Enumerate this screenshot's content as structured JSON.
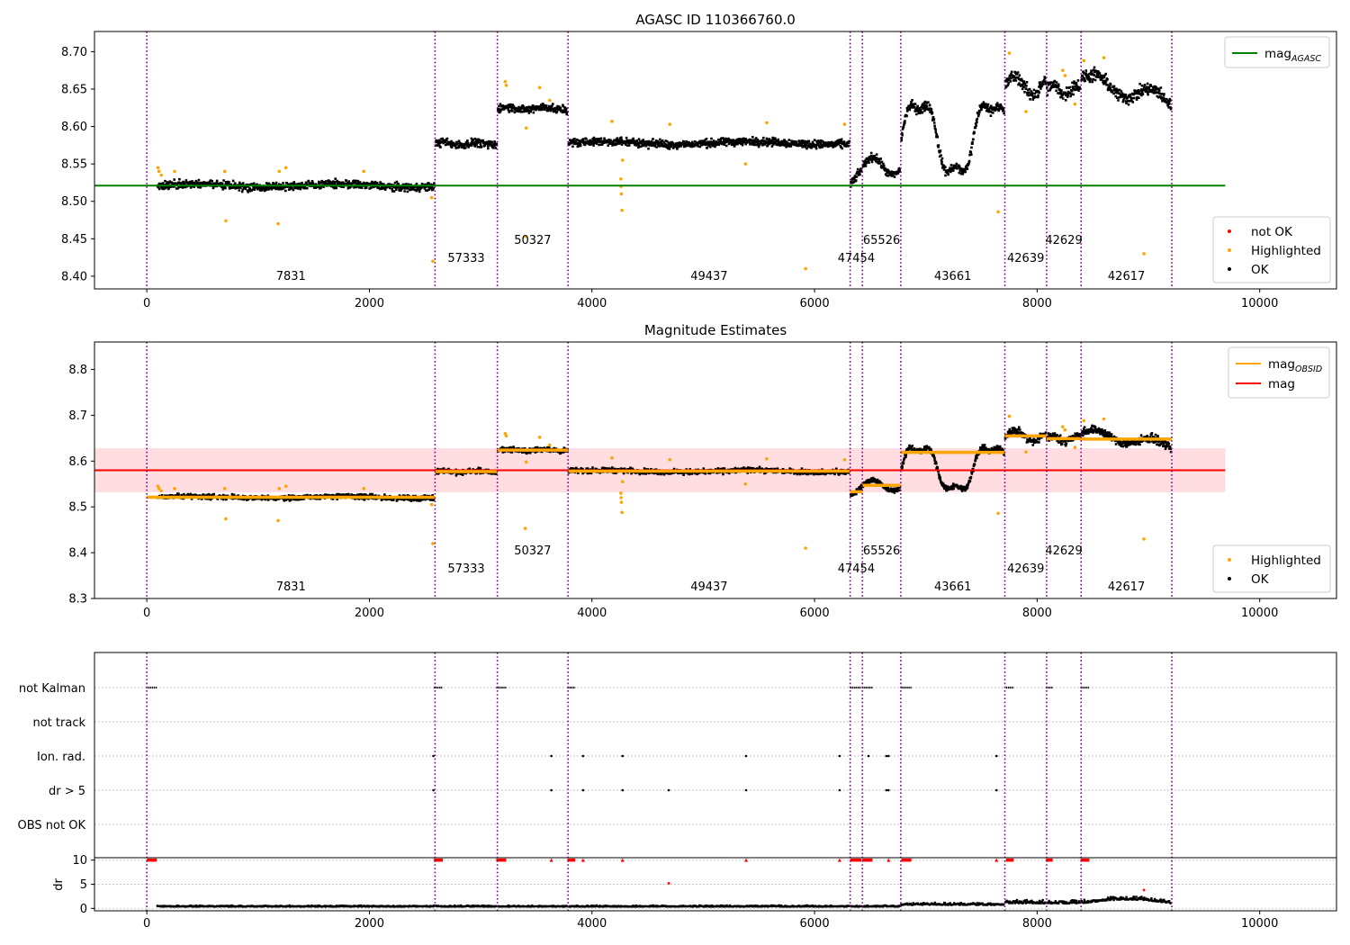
{
  "figure_title": "AGASC ID 110366760.0",
  "colors": {
    "ok": "#000000",
    "highlighted": "#ffa500",
    "not_ok": "#ff0000",
    "agasc_line": "#008000",
    "mag_line": "#ff0000",
    "obsid_line": "#ffa500",
    "band": "#ffdde1",
    "obs_boundary": "#800080",
    "grid": "#b0b0b0"
  },
  "chart_data": [
    {
      "type": "scatter",
      "title": "AGASC ID 110366760.0",
      "xlim": [
        -470,
        10690
      ],
      "ylim": [
        8.383,
        8.727
      ],
      "xticks": [
        0,
        2000,
        4000,
        6000,
        8000,
        10000
      ],
      "yticks": [
        8.4,
        8.45,
        8.5,
        8.55,
        8.6,
        8.65,
        8.7
      ],
      "ytick_labels": [
        "8.40",
        "8.45",
        "8.50",
        "8.55",
        "8.60",
        "8.65",
        "8.70"
      ],
      "legend_top": {
        "placement": "top-right",
        "entries": [
          {
            "label_main": "mag",
            "label_sub": "AGASC",
            "marker": "line",
            "color": "#008000"
          }
        ]
      },
      "legend_bottom": {
        "placement": "bottom-right",
        "entries": [
          {
            "label": "not OK",
            "color": "#ff0000"
          },
          {
            "label": "Highlighted",
            "color": "#ffa500"
          },
          {
            "label": "OK",
            "color": "#000000"
          }
        ]
      },
      "mag_agasc": 8.521,
      "mag_agasc_x": [
        -470,
        9690
      ]
    },
    {
      "type": "scatter",
      "title": "Magnitude Estimates",
      "xlim": [
        -470,
        10690
      ],
      "ylim": [
        8.3,
        8.86
      ],
      "xticks": [
        0,
        2000,
        4000,
        6000,
        8000,
        10000
      ],
      "yticks": [
        8.3,
        8.4,
        8.5,
        8.6,
        8.7,
        8.8
      ],
      "ytick_labels": [
        "8.3",
        "8.4",
        "8.5",
        "8.6",
        "8.7",
        "8.8"
      ],
      "legend_top": {
        "placement": "top-right",
        "entries": [
          {
            "label_main": "mag",
            "label_sub": "OBSID",
            "marker": "line",
            "color": "#ffa500"
          },
          {
            "label_main": "mag",
            "label_sub": "",
            "marker": "line",
            "color": "#ff0000"
          }
        ]
      },
      "legend_bottom": {
        "placement": "bottom-right",
        "entries": [
          {
            "label": "Highlighted",
            "color": "#ffa500"
          },
          {
            "label": "OK",
            "color": "#000000"
          }
        ]
      },
      "mag": 8.58,
      "mag_band": [
        8.532,
        8.628
      ],
      "mag_x": [
        -470,
        9690
      ]
    },
    {
      "type": "scatter",
      "title": "",
      "xlim": [
        -470,
        10690
      ],
      "flag_labels": [
        "not Kalman",
        "not track",
        "Ion. rad.",
        "dr > 5",
        "OBS not OK"
      ],
      "xticks": [
        0,
        2000,
        4000,
        6000,
        8000,
        10000
      ],
      "dr_ylabel": "dr",
      "dr_ylim": [
        -0.5,
        10.5
      ],
      "dr_yticks": [
        0,
        5,
        10
      ],
      "flags": {
        "not Kalman": [
          [
            0,
            90
          ],
          [
            2580,
            2660
          ],
          [
            3140,
            3230
          ],
          [
            3780,
            3850
          ],
          [
            6320,
            6420
          ],
          [
            6430,
            6520
          ],
          [
            6780,
            6870
          ],
          [
            7720,
            7790
          ],
          [
            8080,
            8140
          ],
          [
            8390,
            8470
          ]
        ],
        "Ion. rad.": [
          2575,
          3635,
          3920,
          4275,
          5385,
          6225,
          6485,
          6645,
          6665,
          7635
        ],
        "dr > 5": [
          2575,
          3635,
          3920,
          4275,
          4690,
          5385,
          6225,
          6645,
          6665,
          7635
        ]
      },
      "dr_red_at_10": [
        [
          0,
          90
        ],
        [
          2580,
          2660
        ],
        [
          3140,
          3230
        ],
        [
          3780,
          3850
        ],
        [
          6320,
          6420
        ],
        [
          6430,
          6520
        ],
        [
          6780,
          6870
        ],
        [
          7720,
          7790
        ],
        [
          8080,
          8140
        ],
        [
          8390,
          8470
        ]
      ],
      "dr_red_single": [
        3635,
        3920,
        4275,
        5385,
        6225,
        6665,
        7635
      ],
      "dr_red_other": [
        {
          "x": 4690,
          "y": 5.2
        },
        {
          "x": 8960,
          "y": 3.8
        }
      ]
    }
  ],
  "observations": [
    {
      "obsid": "7831",
      "start": 0,
      "end": 2590,
      "mag": 8.521,
      "label_row": 3
    },
    {
      "obsid": "57333",
      "start": 2590,
      "end": 3150,
      "mag": 8.577,
      "label_row": 2
    },
    {
      "obsid": "50327",
      "start": 3150,
      "end": 3785,
      "mag": 8.624,
      "label_row": 1
    },
    {
      "obsid": "49437",
      "start": 3785,
      "end": 6320,
      "mag": 8.578,
      "label_row": 3
    },
    {
      "obsid": "47454",
      "start": 6320,
      "end": 6430,
      "mag": 8.533,
      "label_row": 2
    },
    {
      "obsid": "65526",
      "start": 6430,
      "end": 6775,
      "mag": 8.547,
      "label_row": 1
    },
    {
      "obsid": "43661",
      "start": 6775,
      "end": 7710,
      "mag": 8.619,
      "label_row": 3
    },
    {
      "obsid": "42639",
      "start": 7710,
      "end": 8085,
      "mag": 8.655,
      "label_row": 2
    },
    {
      "obsid": "42629",
      "start": 8085,
      "end": 8395,
      "mag": 8.649,
      "label_row": 1
    },
    {
      "obsid": "42617",
      "start": 8395,
      "end": 9210,
      "mag": 8.648,
      "label_row": 3
    }
  ],
  "highlighted_points": [
    [
      100,
      8.545
    ],
    [
      110,
      8.54
    ],
    [
      130,
      8.535
    ],
    [
      250,
      8.54
    ],
    [
      700,
      8.54
    ],
    [
      710,
      8.474
    ],
    [
      1180,
      8.47
    ],
    [
      1190,
      8.54
    ],
    [
      1250,
      8.545
    ],
    [
      1950,
      8.54
    ],
    [
      2560,
      8.505
    ],
    [
      2570,
      8.42
    ],
    [
      3220,
      8.66
    ],
    [
      3230,
      8.655
    ],
    [
      3400,
      8.453
    ],
    [
      3410,
      8.598
    ],
    [
      3530,
      8.652
    ],
    [
      3620,
      8.635
    ],
    [
      4180,
      8.607
    ],
    [
      4260,
      8.53
    ],
    [
      4262,
      8.52
    ],
    [
      4265,
      8.51
    ],
    [
      4270,
      8.488
    ],
    [
      4275,
      8.555
    ],
    [
      4700,
      8.603
    ],
    [
      5380,
      8.55
    ],
    [
      5570,
      8.605
    ],
    [
      5920,
      8.41
    ],
    [
      6270,
      8.603
    ],
    [
      7650,
      8.486
    ],
    [
      7750,
      8.698
    ],
    [
      7900,
      8.62
    ],
    [
      8230,
      8.675
    ],
    [
      8250,
      8.668
    ],
    [
      8340,
      8.63
    ],
    [
      8420,
      8.688
    ],
    [
      8600,
      8.692
    ],
    [
      8960,
      8.43
    ]
  ]
}
